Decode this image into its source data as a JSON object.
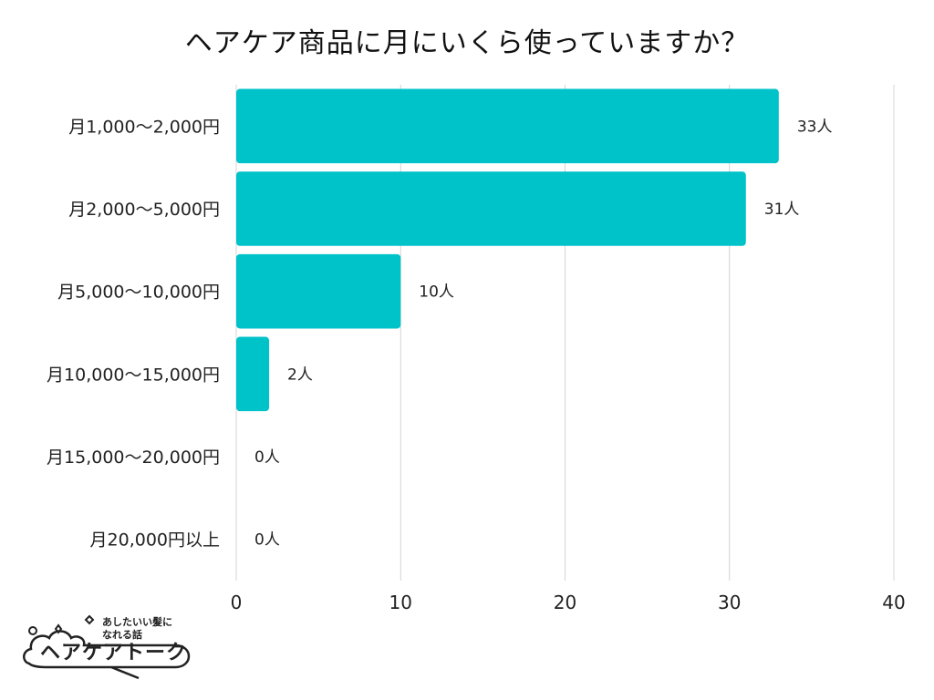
{
  "title": "ヘアケア商品に月にいくら使っていますか？",
  "chart_data": {
    "type": "bar",
    "orientation": "horizontal",
    "title": "ヘアケア商品に月にいくら使っていますか？",
    "categories": [
      "月1,000〜2,000円",
      "月2,000〜5,000円",
      "月5,000〜10,000円",
      "月10,000〜15,000円",
      "月15,000〜20,000円",
      "月20,000円以上"
    ],
    "values": [
      33,
      31,
      10,
      2,
      0,
      0
    ],
    "value_labels": [
      "33人",
      "31人",
      "10人",
      "2人",
      "0人",
      "0人"
    ],
    "xlim": [
      0,
      40
    ],
    "xticks": [
      0,
      10,
      20,
      30,
      40
    ],
    "xlabel": "",
    "ylabel": "",
    "grid": "vertical",
    "bar_color": "#00c2c9",
    "grid_color": "#d4d4d4"
  },
  "logo": {
    "tagline": "あしたいい髪に\nなれる話",
    "name": "ヘアケアトーク"
  }
}
